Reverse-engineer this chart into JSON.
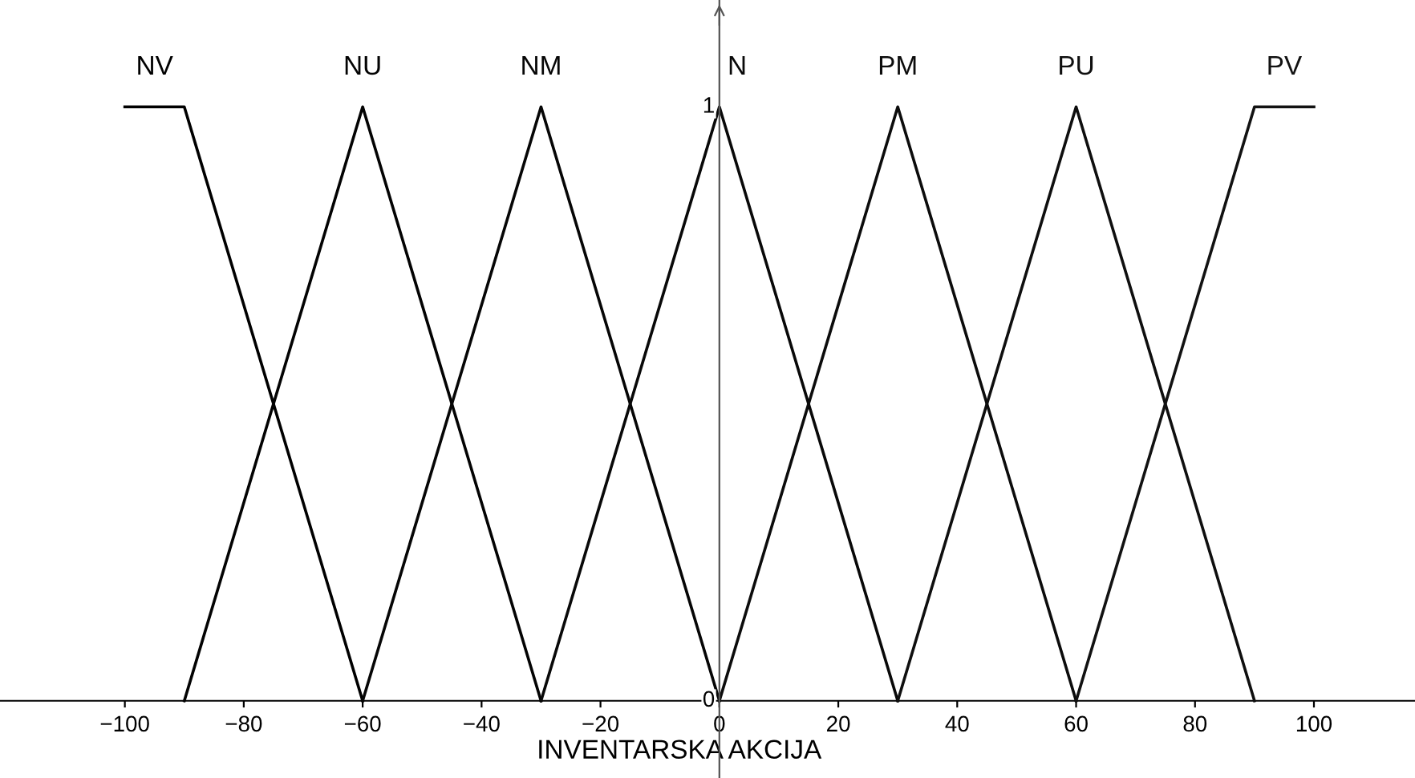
{
  "chart_data": {
    "type": "line",
    "xlabel": "INVENTARSKA AKCIJA",
    "xlim": [
      -121,
      117
    ],
    "ylim": [
      -0.13,
      1.18
    ],
    "xticks": [
      {
        "value": -100,
        "label": "−100"
      },
      {
        "value": -80,
        "label": "−80"
      },
      {
        "value": -60,
        "label": "−60"
      },
      {
        "value": -40,
        "label": "−40"
      },
      {
        "value": -20,
        "label": "−20"
      },
      0,
      20,
      40,
      60,
      80,
      100
    ],
    "yticks": [
      0,
      1
    ],
    "grid": false,
    "legend": false,
    "marker": "none",
    "line_style": "solid",
    "series": [
      {
        "name": "NV",
        "color": "#000000",
        "x": [
          -100,
          -90,
          -60
        ],
        "values": [
          1,
          1,
          0
        ]
      },
      {
        "name": "NU",
        "color": "#030303",
        "x": [
          -90,
          -60,
          -30
        ],
        "values": [
          0,
          1,
          0
        ]
      },
      {
        "name": "NM",
        "color": "#060606",
        "x": [
          -60,
          -30,
          0
        ],
        "values": [
          0,
          1,
          0
        ]
      },
      {
        "name": "N",
        "color": "#090909",
        "x": [
          -30,
          0,
          30
        ],
        "values": [
          0,
          1,
          0
        ]
      },
      {
        "name": "PM",
        "color": "#0c0c0c",
        "x": [
          0,
          30,
          60
        ],
        "values": [
          0,
          1,
          0
        ]
      },
      {
        "name": "PU",
        "color": "#0f0f0f",
        "x": [
          30,
          60,
          90
        ],
        "values": [
          0,
          1,
          0
        ]
      },
      {
        "name": "PV",
        "color": "#121212",
        "x": [
          60,
          90,
          100
        ],
        "values": [
          0,
          1,
          1
        ]
      }
    ]
  }
}
